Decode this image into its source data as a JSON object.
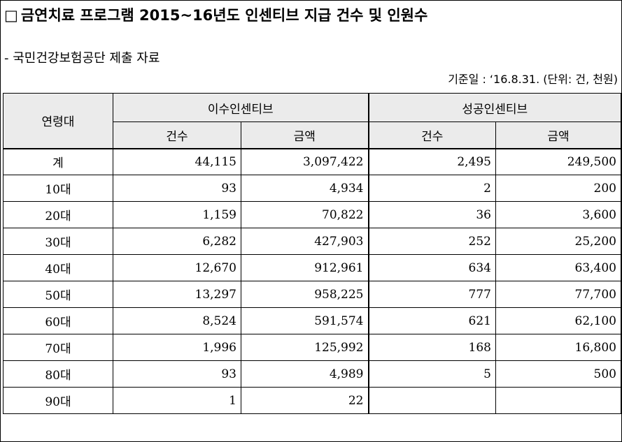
{
  "title": {
    "marker": "□",
    "text": "금연치료 프로그램 2015~16년도 인센티브 지급 건수 및 인원수"
  },
  "source": "- 국민건강보험공단 제출 자료",
  "basis": "기준일 : ‘16.8.31. (단위: 건, 천원)",
  "table": {
    "row_header": "연령대",
    "groups": [
      "이수인센티브",
      "성공인센티브"
    ],
    "sub_headers": [
      "건수",
      "금액",
      "건수",
      "금액"
    ],
    "rows": [
      {
        "age": "계",
        "values": [
          "44,115",
          "3,097,422",
          "2,495",
          "249,500"
        ]
      },
      {
        "age": "10대",
        "values": [
          "93",
          "4,934",
          "2",
          "200"
        ]
      },
      {
        "age": "20대",
        "values": [
          "1,159",
          "70,822",
          "36",
          "3,600"
        ]
      },
      {
        "age": "30대",
        "values": [
          "6,282",
          "427,903",
          "252",
          "25,200"
        ]
      },
      {
        "age": "40대",
        "values": [
          "12,670",
          "912,961",
          "634",
          "63,400"
        ]
      },
      {
        "age": "50대",
        "values": [
          "13,297",
          "958,225",
          "777",
          "77,700"
        ]
      },
      {
        "age": "60대",
        "values": [
          "8,524",
          "591,574",
          "621",
          "62,100"
        ]
      },
      {
        "age": "70대",
        "values": [
          "1,996",
          "125,992",
          "168",
          "16,800"
        ]
      },
      {
        "age": "80대",
        "values": [
          "93",
          "4,989",
          "5",
          "500"
        ]
      },
      {
        "age": "90대",
        "values": [
          "1",
          "22",
          "",
          ""
        ]
      }
    ]
  }
}
